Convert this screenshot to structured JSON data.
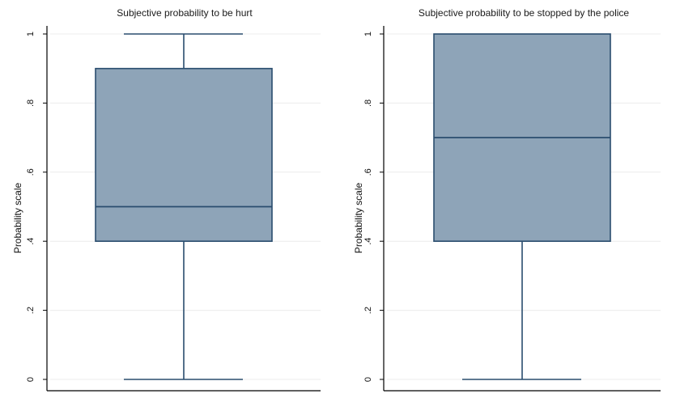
{
  "chart_data": [
    {
      "type": "box",
      "title": "Subjective probability to be hurt",
      "ylabel": "Probability scale",
      "xlabel": "",
      "ylim": [
        0,
        1
      ],
      "ticks": [
        0,
        0.2,
        0.4,
        0.6,
        0.8,
        1
      ],
      "tick_labels": [
        "0",
        ".2",
        ".4",
        ".6",
        ".8",
        "1"
      ],
      "grid": true,
      "box": {
        "min": 0,
        "q1": 0.4,
        "median": 0.5,
        "q3": 0.9,
        "max": 1
      }
    },
    {
      "type": "box",
      "title": "Subjective probability to be stopped by the police",
      "ylabel": "Probability scale",
      "xlabel": "",
      "ylim": [
        0,
        1
      ],
      "ticks": [
        0,
        0.2,
        0.4,
        0.6,
        0.8,
        1
      ],
      "tick_labels": [
        "0",
        ".2",
        ".4",
        ".6",
        ".8",
        "1"
      ],
      "grid": true,
      "box": {
        "min": 0,
        "q1": 0.4,
        "median": 0.7,
        "q3": 1,
        "max": 1
      }
    }
  ],
  "colors": {
    "box_fill": "#8ea4b8",
    "box_stroke": "#2a4d6e",
    "grid": "#ececec",
    "axis": "#000000"
  }
}
